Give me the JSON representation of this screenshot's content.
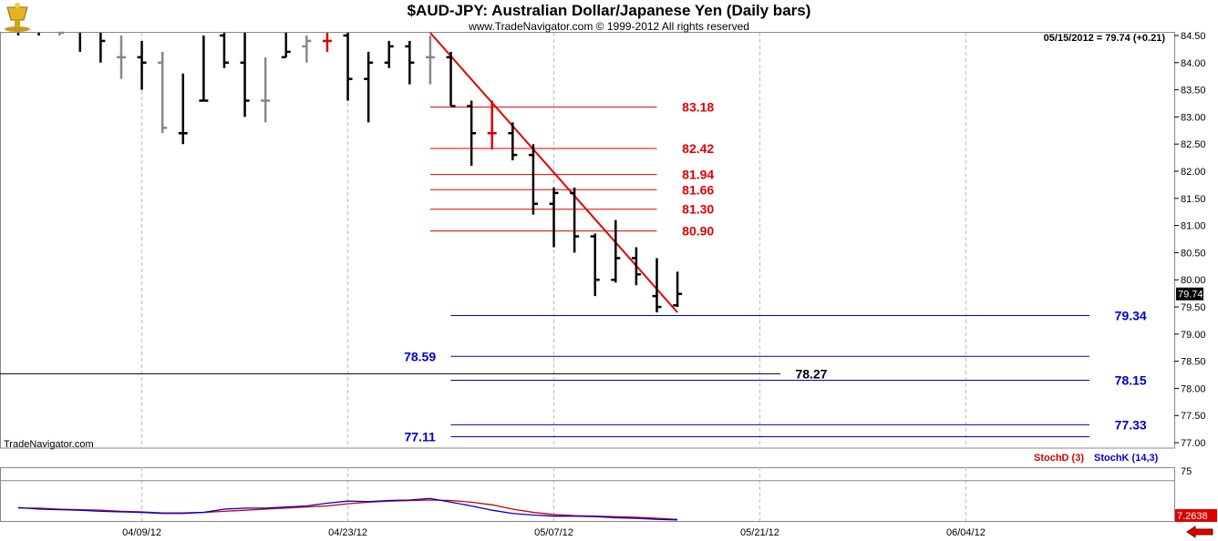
{
  "header": {
    "title": "$AUD-JPY:  Australian Dollar/Japanese Yen  (Daily bars)",
    "subtitle": "www.TradeNavigator.com © 1999-2012 All rights reserved"
  },
  "readout": "05/15/2012 = 79.74 (+0.21)",
  "brand": "TradeNavigator.com",
  "indicator": {
    "stochd_label": "StochD (3)",
    "stochk_label": "StochK (14,3)",
    "stochd_color": "#cc0000",
    "stochk_color": "#0000cc",
    "level_label": "75",
    "last_value_label": "7.2638"
  },
  "icons": {
    "logo": "gold-trophy-icon",
    "scroll": "red-left-arrow-icon"
  },
  "chart_data": {
    "type": "ohlc",
    "price_axis": {
      "min": 76.9,
      "max": 84.55,
      "ticks": [
        "84.50",
        "84.00",
        "83.50",
        "83.00",
        "82.50",
        "82.00",
        "81.50",
        "81.00",
        "80.50",
        "80.00",
        "79.50",
        "79.00",
        "78.50",
        "78.00",
        "77.50",
        "77.00"
      ],
      "last_price": 79.74,
      "last_price_label": "79.74"
    },
    "date_axis": {
      "ticks": [
        {
          "label": "04/09/12",
          "index": 6
        },
        {
          "label": "04/23/12",
          "index": 16
        },
        {
          "label": "05/07/12",
          "index": 26
        },
        {
          "label": "05/21/12",
          "index": 36
        },
        {
          "label": "06/04/12",
          "index": 46
        }
      ],
      "total_slots": 57
    },
    "bars": [
      {
        "i": 0,
        "o": 84.7,
        "h": 84.9,
        "l": 84.5,
        "c": 84.6,
        "color": "black"
      },
      {
        "i": 1,
        "o": 84.6,
        "h": 84.8,
        "l": 84.5,
        "c": 84.7,
        "color": "black"
      },
      {
        "i": 2,
        "o": 84.7,
        "h": 84.8,
        "l": 84.5,
        "c": 84.55,
        "color": "gray"
      },
      {
        "i": 3,
        "o": 84.6,
        "h": 84.8,
        "l": 84.2,
        "c": 84.7,
        "color": "black"
      },
      {
        "i": 4,
        "o": 84.6,
        "h": 84.8,
        "l": 84.0,
        "c": 84.4,
        "color": "black"
      },
      {
        "i": 5,
        "o": 84.1,
        "h": 84.5,
        "l": 83.7,
        "c": 84.1,
        "color": "gray"
      },
      {
        "i": 6,
        "o": 84.1,
        "h": 84.4,
        "l": 83.5,
        "c": 84.0,
        "color": "black"
      },
      {
        "i": 7,
        "o": 84.0,
        "h": 84.2,
        "l": 82.7,
        "c": 82.8,
        "color": "gray"
      },
      {
        "i": 8,
        "o": 82.7,
        "h": 83.8,
        "l": 82.5,
        "c": 82.7,
        "color": "black"
      },
      {
        "i": 9,
        "o": 83.3,
        "h": 84.5,
        "l": 83.3,
        "c": 83.3,
        "color": "black"
      },
      {
        "i": 10,
        "o": 84.5,
        "h": 84.55,
        "l": 83.9,
        "c": 84.0,
        "color": "black"
      },
      {
        "i": 11,
        "o": 84.0,
        "h": 84.55,
        "l": 83.0,
        "c": 83.3,
        "color": "black"
      },
      {
        "i": 12,
        "o": 83.3,
        "h": 84.1,
        "l": 82.9,
        "c": 83.3,
        "color": "gray"
      },
      {
        "i": 13,
        "o": 84.1,
        "h": 84.55,
        "l": 84.1,
        "c": 84.2,
        "color": "black"
      },
      {
        "i": 14,
        "o": 84.3,
        "h": 84.5,
        "l": 84.0,
        "c": 84.4,
        "color": "gray"
      },
      {
        "i": 15,
        "o": 84.4,
        "h": 84.55,
        "l": 84.2,
        "c": 84.4,
        "color": "red"
      },
      {
        "i": 16,
        "o": 84.5,
        "h": 84.55,
        "l": 83.3,
        "c": 83.7,
        "color": "black"
      },
      {
        "i": 17,
        "o": 83.7,
        "h": 84.2,
        "l": 82.9,
        "c": 84.0,
        "color": "black"
      },
      {
        "i": 18,
        "o": 84.0,
        "h": 84.4,
        "l": 83.9,
        "c": 84.3,
        "color": "black"
      },
      {
        "i": 19,
        "o": 84.3,
        "h": 84.4,
        "l": 83.6,
        "c": 84.0,
        "color": "black"
      },
      {
        "i": 20,
        "o": 84.1,
        "h": 84.5,
        "l": 83.6,
        "c": 84.1,
        "color": "gray"
      },
      {
        "i": 21,
        "o": 84.1,
        "h": 84.2,
        "l": 83.2,
        "c": 83.2,
        "color": "black"
      },
      {
        "i": 22,
        "o": 83.2,
        "h": 83.3,
        "l": 82.1,
        "c": 82.7,
        "color": "black"
      },
      {
        "i": 23,
        "o": 82.7,
        "h": 83.3,
        "l": 82.4,
        "c": 82.7,
        "color": "red"
      },
      {
        "i": 24,
        "o": 82.7,
        "h": 82.9,
        "l": 82.2,
        "c": 82.3,
        "color": "black"
      },
      {
        "i": 25,
        "o": 82.3,
        "h": 82.5,
        "l": 81.2,
        "c": 81.4,
        "color": "black"
      },
      {
        "i": 26,
        "o": 81.4,
        "h": 81.7,
        "l": 80.6,
        "c": 81.6,
        "color": "black"
      },
      {
        "i": 27,
        "o": 81.6,
        "h": 81.7,
        "l": 80.5,
        "c": 80.8,
        "color": "black"
      },
      {
        "i": 28,
        "o": 80.8,
        "h": 80.85,
        "l": 79.7,
        "c": 80.0,
        "color": "black"
      },
      {
        "i": 29,
        "o": 80.0,
        "h": 81.1,
        "l": 79.95,
        "c": 80.4,
        "color": "black"
      },
      {
        "i": 30,
        "o": 80.4,
        "h": 80.6,
        "l": 79.9,
        "c": 80.1,
        "color": "black"
      },
      {
        "i": 31,
        "o": 79.7,
        "h": 80.4,
        "l": 79.4,
        "c": 79.5,
        "color": "black"
      },
      {
        "i": 32,
        "o": 79.53,
        "h": 80.15,
        "l": 79.5,
        "c": 79.74,
        "color": "black"
      }
    ],
    "trendline": {
      "from": {
        "i": 20,
        "price": 84.55
      },
      "to": {
        "i": 32,
        "price": 79.4
      },
      "color": "#dd0000"
    },
    "levels": [
      {
        "value": 83.18,
        "label": "83.18",
        "from_i": 20,
        "to_i": 31,
        "label_i": 33,
        "color": "#dd0000"
      },
      {
        "value": 82.42,
        "label": "82.42",
        "from_i": 20,
        "to_i": 31,
        "label_i": 33,
        "color": "#dd0000"
      },
      {
        "value": 81.94,
        "label": "81.94",
        "from_i": 20,
        "to_i": 31,
        "label_i": 33,
        "color": "#dd0000"
      },
      {
        "value": 81.66,
        "label": "81.66",
        "from_i": 20,
        "to_i": 31,
        "label_i": 33,
        "color": "#dd0000"
      },
      {
        "value": 81.3,
        "label": "81.30",
        "from_i": 20,
        "to_i": 31,
        "label_i": 33,
        "color": "#dd0000"
      },
      {
        "value": 80.9,
        "label": "80.90",
        "from_i": 20,
        "to_i": 31,
        "label_i": 33,
        "color": "#dd0000"
      },
      {
        "value": 79.34,
        "label": "79.34",
        "from_i": 21,
        "to_i": 52,
        "label_i": 54,
        "color": "#0000cc"
      },
      {
        "value": 78.59,
        "label": "78.59",
        "from_i": 21,
        "to_i": 52,
        "label_i": 19.5,
        "color": "#0000cc"
      },
      {
        "value": 78.27,
        "label": "78.27",
        "from_i": -1,
        "to_i": 37,
        "label_i": 38.5,
        "color": "#000000"
      },
      {
        "value": 78.15,
        "label": "78.15",
        "from_i": 21,
        "to_i": 52,
        "label_i": 54,
        "color": "#0000cc"
      },
      {
        "value": 77.33,
        "label": "77.33",
        "from_i": 21,
        "to_i": 52,
        "label_i": 54,
        "color": "#0000cc"
      },
      {
        "value": 77.11,
        "label": "77.11",
        "from_i": 21,
        "to_i": 52,
        "label_i": 19.5,
        "color": "#0000cc"
      }
    ],
    "stochastic": {
      "range": [
        0,
        100
      ],
      "level": 75,
      "stochK": [
        25,
        22,
        21,
        20,
        18,
        17,
        16,
        14,
        14,
        16,
        22,
        24,
        24,
        26,
        28,
        33,
        37,
        36,
        38,
        39,
        42,
        35,
        28,
        20,
        14,
        11,
        9,
        9,
        8,
        6,
        5,
        3,
        2
      ],
      "stochD": [
        24,
        24,
        22,
        21,
        20,
        18,
        17,
        15,
        15,
        16,
        18,
        20,
        22,
        24,
        26,
        28,
        32,
        35,
        37,
        38,
        39,
        38,
        35,
        30,
        22,
        16,
        12,
        10,
        9,
        8,
        7,
        5,
        3
      ]
    }
  }
}
